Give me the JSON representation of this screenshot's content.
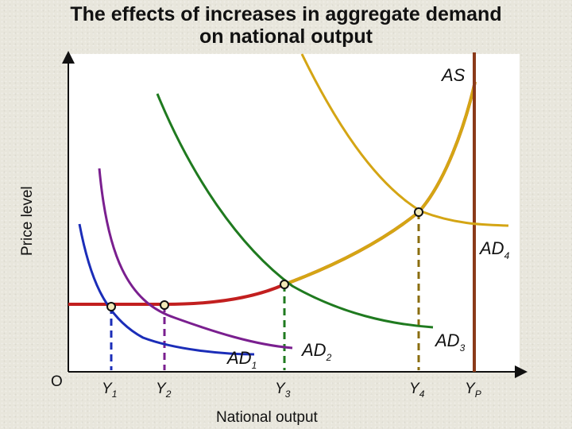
{
  "title": {
    "line1": "The effects of increases in aggregate demand",
    "line2": "on national output"
  },
  "axes": {
    "y_label": "Price level",
    "x_label": "National output",
    "origin": "O"
  },
  "curves": {
    "as": {
      "label": "AS",
      "color": "#d4a514"
    },
    "ad1": {
      "label": "AD",
      "sub": "1",
      "color": "#1b2db8"
    },
    "ad2": {
      "label": "AD",
      "sub": "2",
      "color": "#7a1f8f"
    },
    "ad3": {
      "label": "AD",
      "sub": "3",
      "color": "#1f7a1f"
    },
    "ad4": {
      "label": "AD",
      "sub": "4",
      "color": "#d4a514"
    },
    "flat_as_color": "#c21f1f",
    "vertical_as_color": "#8b3a1a"
  },
  "ticks": [
    {
      "label": "Y",
      "sub": "1",
      "color": "#1b2db8"
    },
    {
      "label": "Y",
      "sub": "2",
      "color": "#7a1f8f"
    },
    {
      "label": "Y",
      "sub": "3",
      "color": "#1f7a1f"
    },
    {
      "label": "Y",
      "sub": "4",
      "color": "#8a6d0f"
    },
    {
      "label": "Y",
      "sub": "P",
      "color": "#8b3a1a"
    }
  ]
}
